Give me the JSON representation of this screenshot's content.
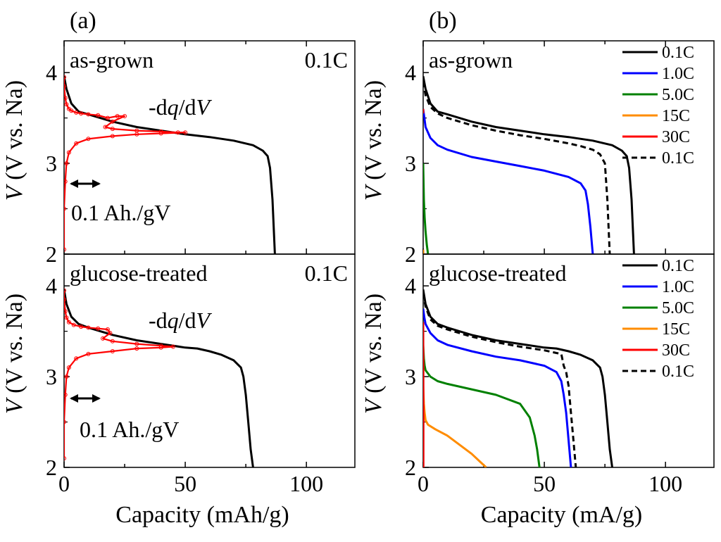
{
  "chart_data": [
    {
      "id": "a-top",
      "type": "line",
      "panel_label": "(a)",
      "sample_label": "as-grown",
      "rate_label": "0.1C",
      "dqdv_label": "-dq/dV",
      "scale_label": "0.1 Ah./gV",
      "xlabel": "",
      "ylabel": "V (V vs. Na)",
      "xlim": [
        0,
        120
      ],
      "ylim": [
        2,
        4.35
      ],
      "xticks": [],
      "yticks": [
        {
          "v": 2,
          "label": "2"
        },
        {
          "v": 3,
          "label": "3"
        },
        {
          "v": 4,
          "label": "4"
        }
      ],
      "series": [
        {
          "name": "0.1C",
          "color": "#000000",
          "dash": "",
          "x": [
            0,
            1,
            3,
            6,
            10,
            20,
            30,
            40,
            50,
            60,
            70,
            78,
            82,
            84,
            85,
            86,
            86.5,
            87
          ],
          "y": [
            3.96,
            3.82,
            3.66,
            3.57,
            3.54,
            3.46,
            3.4,
            3.36,
            3.32,
            3.29,
            3.25,
            3.2,
            3.14,
            3.08,
            2.95,
            2.6,
            2.3,
            2.0
          ]
        },
        {
          "name": "-dq/dV",
          "color": "#ff0000",
          "dash": "",
          "x": [
            0,
            0,
            0.5,
            1,
            2,
            3,
            5,
            7,
            10,
            14,
            18,
            22,
            25,
            20,
            17,
            20,
            30,
            40,
            47,
            50,
            40,
            30,
            20,
            10,
            5,
            2,
            1,
            0.5,
            0,
            0
          ],
          "y": [
            3.95,
            3.85,
            3.72,
            3.65,
            3.6,
            3.58,
            3.56,
            3.55,
            3.54,
            3.53,
            3.5,
            3.52,
            3.52,
            3.46,
            3.4,
            3.38,
            3.36,
            3.35,
            3.34,
            3.34,
            3.33,
            3.32,
            3.3,
            3.27,
            3.22,
            3.12,
            3.0,
            2.8,
            2.5,
            2.05
          ]
        }
      ]
    },
    {
      "id": "a-bottom",
      "type": "line",
      "sample_label": "glucose-treated",
      "rate_label": "0.1C",
      "dqdv_label": "-dq/dV",
      "scale_label": "0.1 Ah./gV",
      "xlabel": "Capacity (mAh/g)",
      "ylabel": "V (V vs. Na)",
      "xlim": [
        0,
        120
      ],
      "ylim": [
        2,
        4.35
      ],
      "xticks": [
        {
          "v": 0,
          "label": "0"
        },
        {
          "v": 50,
          "label": "50"
        },
        {
          "v": 100,
          "label": "100"
        }
      ],
      "yticks": [
        {
          "v": 2,
          "label": "2"
        },
        {
          "v": 3,
          "label": "3"
        },
        {
          "v": 4,
          "label": "4"
        }
      ],
      "series": [
        {
          "name": "0.1C",
          "color": "#000000",
          "dash": "",
          "x": [
            0,
            1,
            3,
            6,
            10,
            20,
            30,
            40,
            50,
            55,
            60,
            65,
            70,
            73,
            74,
            75,
            76,
            77,
            78
          ],
          "y": [
            3.96,
            3.8,
            3.66,
            3.58,
            3.54,
            3.46,
            3.4,
            3.36,
            3.32,
            3.31,
            3.28,
            3.24,
            3.18,
            3.1,
            3.0,
            2.8,
            2.5,
            2.2,
            2.0
          ]
        },
        {
          "name": "-dq/dV",
          "color": "#ff0000",
          "dash": "",
          "x": [
            0,
            0,
            0.5,
            1,
            2,
            4,
            7,
            10,
            14,
            18,
            19,
            16,
            20,
            30,
            40,
            45,
            40,
            30,
            20,
            10,
            5,
            2,
            1,
            0.5,
            0,
            0
          ],
          "y": [
            3.95,
            3.85,
            3.72,
            3.65,
            3.6,
            3.57,
            3.55,
            3.54,
            3.53,
            3.52,
            3.48,
            3.42,
            3.39,
            3.36,
            3.34,
            3.33,
            3.32,
            3.31,
            3.28,
            3.25,
            3.2,
            3.1,
            3.0,
            2.8,
            2.5,
            2.1
          ]
        }
      ]
    },
    {
      "id": "b-top",
      "type": "line",
      "panel_label": "(b)",
      "sample_label": "as-grown",
      "xlabel": "",
      "ylabel": "V (V vs. Na)",
      "xlim": [
        0,
        120
      ],
      "ylim": [
        2,
        4.35
      ],
      "xticks": [],
      "yticks": [
        {
          "v": 2,
          "label": "2"
        },
        {
          "v": 3,
          "label": "3"
        },
        {
          "v": 4,
          "label": "4"
        }
      ],
      "legend": [
        "0.1C",
        "1.0C",
        "5.0C",
        "15C",
        "30C",
        "0.1C"
      ],
      "series": [
        {
          "name": "0.1C",
          "color": "#000000",
          "dash": "",
          "x": [
            0,
            1,
            3,
            6,
            10,
            20,
            30,
            40,
            50,
            60,
            70,
            78,
            82,
            84,
            85,
            86,
            86.5,
            87
          ],
          "y": [
            3.96,
            3.82,
            3.66,
            3.57,
            3.54,
            3.46,
            3.4,
            3.36,
            3.32,
            3.29,
            3.25,
            3.2,
            3.14,
            3.08,
            2.95,
            2.6,
            2.3,
            2.0
          ]
        },
        {
          "name": "1.0C",
          "color": "#0000ff",
          "dash": "",
          "x": [
            0,
            0.5,
            1,
            3,
            6,
            10,
            20,
            30,
            40,
            50,
            60,
            65,
            67,
            68,
            69,
            70
          ],
          "y": [
            3.6,
            3.5,
            3.4,
            3.28,
            3.2,
            3.15,
            3.07,
            3.02,
            2.97,
            2.92,
            2.85,
            2.78,
            2.7,
            2.55,
            2.3,
            2.0
          ]
        },
        {
          "name": "5.0C",
          "color": "#008000",
          "dash": "",
          "x": [
            0,
            0.3,
            0.6,
            1,
            1.5,
            2
          ],
          "y": [
            3.0,
            2.6,
            2.4,
            2.25,
            2.1,
            2.0
          ]
        },
        {
          "name": "15C",
          "color": "#ff8c00",
          "dash": "",
          "x": [
            0,
            0.05
          ],
          "y": [
            2.05,
            2.0
          ]
        },
        {
          "name": "30C",
          "color": "#ff0000",
          "dash": "",
          "x": [
            0,
            0
          ],
          "y": [
            3.6,
            3.55
          ]
        },
        {
          "name": "0.1C",
          "color": "#000000",
          "dash": "8,5",
          "x": [
            0,
            1,
            3,
            6,
            10,
            20,
            30,
            40,
            50,
            60,
            65,
            70,
            73,
            75,
            76,
            77
          ],
          "y": [
            3.9,
            3.75,
            3.62,
            3.55,
            3.5,
            3.42,
            3.36,
            3.31,
            3.27,
            3.22,
            3.19,
            3.15,
            3.1,
            3.0,
            2.6,
            2.0
          ]
        }
      ]
    },
    {
      "id": "b-bottom",
      "type": "line",
      "sample_label": "glucose-treated",
      "xlabel": "Capacity (mA/g)",
      "ylabel": "V (V vs. Na)",
      "xlim": [
        0,
        120
      ],
      "ylim": [
        2,
        4.35
      ],
      "xticks": [
        {
          "v": 0,
          "label": "0"
        },
        {
          "v": 50,
          "label": "50"
        },
        {
          "v": 100,
          "label": "100"
        }
      ],
      "yticks": [
        {
          "v": 2,
          "label": "2"
        },
        {
          "v": 3,
          "label": "3"
        },
        {
          "v": 4,
          "label": "4"
        }
      ],
      "legend": [
        "0.1C",
        "1.0C",
        "5.0C",
        "15C",
        "30C",
        "0.1C"
      ],
      "series": [
        {
          "name": "0.1C",
          "color": "#000000",
          "dash": "",
          "x": [
            0,
            1,
            3,
            6,
            10,
            20,
            30,
            40,
            50,
            55,
            60,
            65,
            70,
            73,
            74,
            75,
            76,
            77,
            78
          ],
          "y": [
            3.96,
            3.8,
            3.66,
            3.58,
            3.54,
            3.46,
            3.4,
            3.36,
            3.32,
            3.31,
            3.28,
            3.24,
            3.18,
            3.1,
            3.0,
            2.8,
            2.5,
            2.2,
            2.0
          ]
        },
        {
          "name": "1.0C",
          "color": "#0000ff",
          "dash": "",
          "x": [
            0,
            0.5,
            1,
            3,
            6,
            10,
            20,
            30,
            40,
            50,
            55,
            57,
            58,
            59,
            60,
            61
          ],
          "y": [
            3.75,
            3.65,
            3.58,
            3.48,
            3.4,
            3.35,
            3.28,
            3.22,
            3.18,
            3.12,
            3.05,
            2.95,
            2.8,
            2.6,
            2.3,
            2.0
          ]
        },
        {
          "name": "5.0C",
          "color": "#008000",
          "dash": "",
          "x": [
            0,
            0.3,
            0.6,
            1,
            3,
            6,
            10,
            20,
            30,
            40,
            44,
            46,
            47,
            48
          ],
          "y": [
            3.35,
            3.2,
            3.12,
            3.07,
            3.0,
            2.95,
            2.92,
            2.86,
            2.8,
            2.7,
            2.55,
            2.35,
            2.2,
            2.0
          ]
        },
        {
          "name": "15C",
          "color": "#ff8c00",
          "dash": "",
          "x": [
            0,
            0.3,
            0.6,
            1,
            2,
            5,
            10,
            15,
            20,
            24,
            26
          ],
          "y": [
            2.9,
            2.7,
            2.6,
            2.52,
            2.47,
            2.42,
            2.35,
            2.25,
            2.15,
            2.05,
            2.0
          ]
        },
        {
          "name": "30C",
          "color": "#ff0000",
          "dash": "",
          "x": [
            0,
            0.05,
            0.1,
            0.1
          ],
          "y": [
            3.6,
            3.1,
            2.5,
            2.0
          ]
        },
        {
          "name": "0.1C",
          "color": "#000000",
          "dash": "8,5",
          "x": [
            0,
            1,
            3,
            6,
            10,
            20,
            30,
            40,
            50,
            55,
            57,
            58,
            59,
            60,
            61,
            62,
            63
          ],
          "y": [
            3.92,
            3.77,
            3.63,
            3.56,
            3.52,
            3.44,
            3.38,
            3.33,
            3.29,
            3.26,
            3.25,
            3.12,
            3.05,
            2.9,
            2.6,
            2.3,
            2.0
          ]
        }
      ]
    }
  ]
}
